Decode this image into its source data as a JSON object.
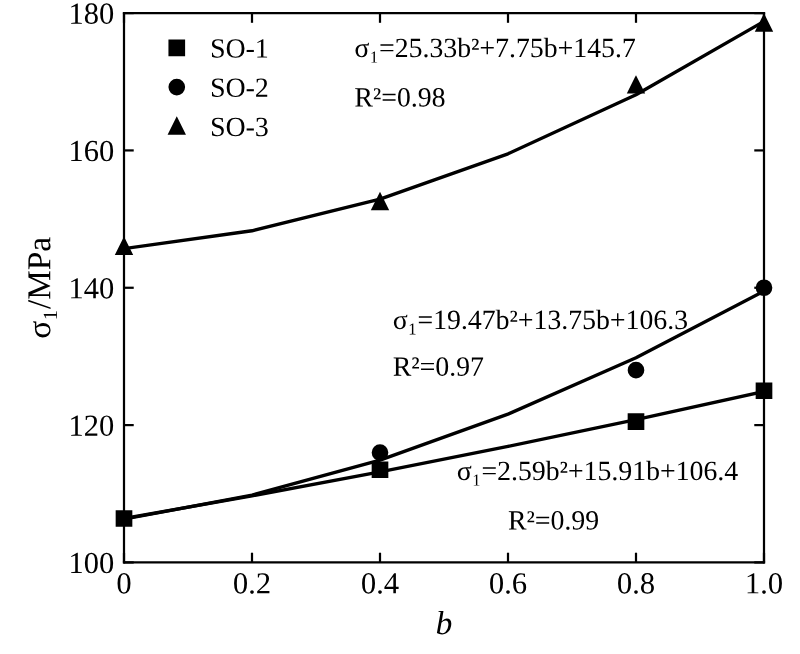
{
  "chart_data": {
    "type": "scatter",
    "xlabel": "b",
    "ylabel": "σ₁/MPa",
    "xlim": [
      0,
      1.0
    ],
    "xticks": [
      0,
      0.2,
      0.4,
      0.6,
      0.8,
      {
        "value": 1.0,
        "label": "1.0"
      }
    ],
    "ylim": [
      100,
      180
    ],
    "yticks": [
      100,
      120,
      140,
      160,
      180
    ],
    "grid": false,
    "legend": "top left",
    "series": [
      {
        "name": "SO-1",
        "color": "#000000",
        "marker": "square",
        "x": [
          0,
          0.4,
          0.8,
          1.0
        ],
        "values": [
          106.4,
          113.5,
          120.5,
          125
        ]
      },
      {
        "name": "SO-2",
        "color": "#000000",
        "marker": "circle",
        "x": [
          0.4,
          0.8,
          1.0
        ],
        "values": [
          116,
          128,
          140
        ]
      },
      {
        "name": "SO-3",
        "color": "#000000",
        "marker": "triangle",
        "x": [
          0,
          0.4,
          0.8,
          1.0
        ],
        "values": [
          146,
          152.5,
          169.5,
          178.5
        ]
      },
      {
        "type": "line",
        "color": "#000000",
        "line_style": "solid",
        "x": [
          0,
          0.2,
          0.4,
          0.6,
          0.8,
          1.0
        ],
        "values": [
          106.4,
          109.7,
          113.2,
          116.9,
          120.8,
          124.9
        ]
      },
      {
        "type": "line",
        "color": "#000000",
        "line_style": "solid",
        "x": [
          0,
          0.2,
          0.4,
          0.6,
          0.8,
          1.0
        ],
        "values": [
          106.3,
          109.8,
          114.9,
          121.6,
          129.8,
          139.5
        ]
      },
      {
        "type": "line",
        "color": "#000000",
        "line_style": "solid",
        "x": [
          0,
          0.2,
          0.4,
          0.6,
          0.8,
          1.0
        ],
        "values": [
          145.7,
          148.3,
          152.9,
          159.5,
          168.1,
          178.8
        ]
      }
    ],
    "annotations": [
      "σ₁=25.33b²+7.75b+145.7",
      "R²=0.98",
      "σ₁=19.47b²+13.75b+106.3",
      "R²=0.97",
      "σ₁=2.59b²+15.91b+106.4",
      "R²=0.99"
    ]
  }
}
